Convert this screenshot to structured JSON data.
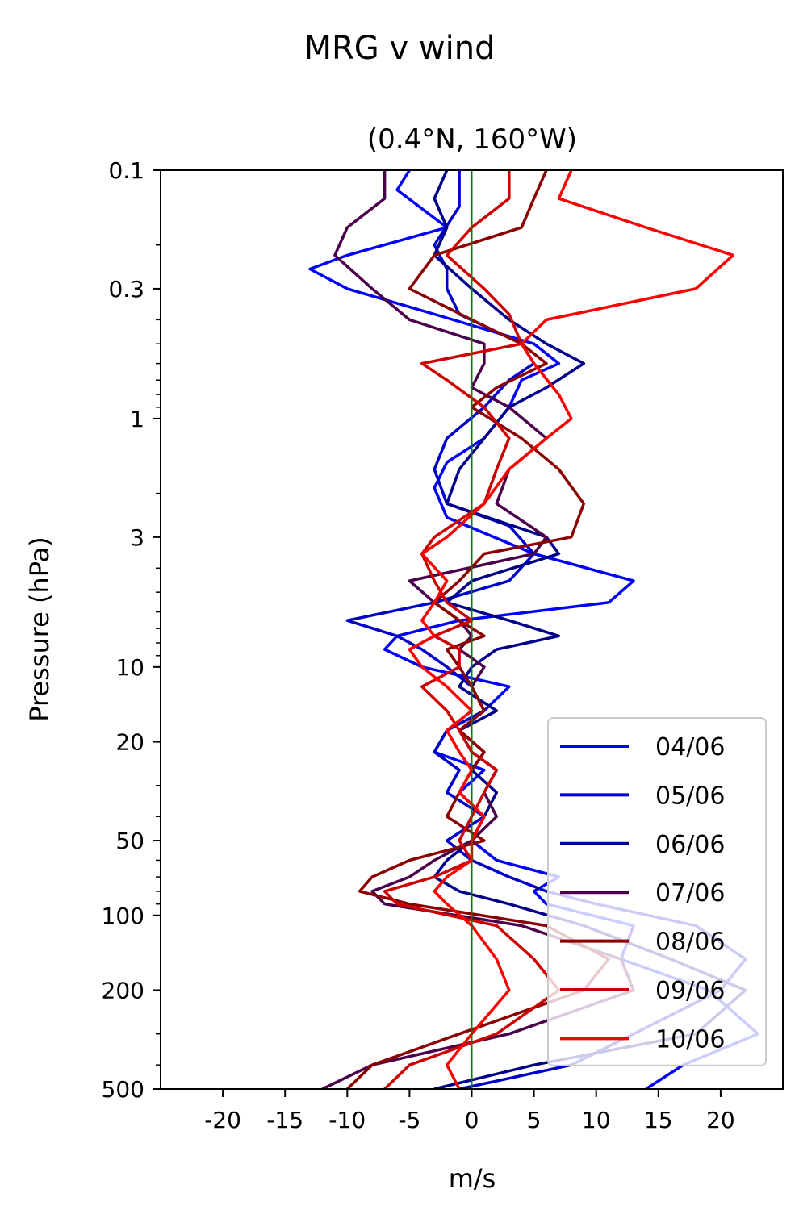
{
  "chart_data": {
    "type": "line",
    "title": "MRG v wind",
    "subtitle": "(0.4°N, 160°W)",
    "xlabel": "m/s",
    "ylabel": "Pressure (hPa)",
    "xlim": [
      -25,
      25
    ],
    "ylim": [
      500,
      0.1
    ],
    "yscale": "log",
    "x_ticks": [
      -20,
      -15,
      -10,
      -5,
      0,
      5,
      10,
      15,
      20
    ],
    "x_tick_labels": [
      "-20",
      "-15",
      "-10",
      "-5",
      "0",
      "5",
      "10",
      "15",
      "20"
    ],
    "y_ticks": [
      0.1,
      0.3,
      1,
      3,
      10,
      20,
      50,
      100,
      200,
      500
    ],
    "y_tick_labels": [
      "0.1",
      "0.3",
      "1",
      "3",
      "10",
      "20",
      "50",
      "100",
      "200",
      "500"
    ],
    "reference_line": {
      "x": 0,
      "color": "#008000"
    },
    "legend_position": "lower right",
    "grid": false,
    "series": [
      {
        "name": "04/06",
        "color": "#0000ff",
        "p": [
          0.1,
          0.12,
          0.17,
          0.22,
          0.25,
          0.3,
          0.38,
          0.5,
          0.6,
          0.7,
          0.9,
          1.2,
          1.5,
          1.9,
          2.5,
          3.5,
          4.5,
          5.5,
          6.5,
          7.5,
          8.5,
          10,
          12,
          15,
          18,
          22,
          26,
          32,
          40,
          50,
          60,
          70,
          80,
          90,
          110,
          150,
          200,
          300,
          400,
          500
        ],
        "x": [
          -5,
          -6,
          -2,
          -10,
          -13,
          -10,
          -3,
          5,
          7,
          4,
          3,
          1,
          -2,
          -3,
          -2,
          5,
          13,
          11,
          -1,
          -6,
          -7,
          -4,
          3,
          1,
          -2,
          -3,
          1,
          -1,
          1,
          0,
          2,
          7,
          5,
          6,
          13,
          12,
          19,
          23,
          17,
          14
        ]
      },
      {
        "name": "05/06",
        "color": "#0000cc",
        "p": [
          0.1,
          0.14,
          0.2,
          0.25,
          0.3,
          0.38,
          0.5,
          0.6,
          0.7,
          0.9,
          1.2,
          1.6,
          2.2,
          2.7,
          3.5,
          4.5,
          5.5,
          6.5,
          7.5,
          8.5,
          10,
          12,
          15,
          18,
          22,
          26,
          32,
          40,
          50,
          60,
          70,
          80,
          90,
          110,
          150,
          200,
          300,
          400,
          500
        ],
        "x": [
          -1,
          -1,
          -3,
          -2,
          -2,
          -1,
          4,
          5,
          3,
          1,
          -2,
          -3,
          -2,
          3,
          5,
          3,
          -3,
          -10,
          -6,
          -4,
          -2,
          0,
          1,
          -2,
          -3,
          -1,
          -2,
          1,
          -2,
          0,
          3,
          6,
          10,
          18,
          22,
          20,
          13,
          8,
          -1
        ]
      },
      {
        "name": "06/06",
        "color": "#00008b",
        "p": [
          0.1,
          0.13,
          0.17,
          0.22,
          0.3,
          0.4,
          0.5,
          0.6,
          0.75,
          0.9,
          1.2,
          1.6,
          2.2,
          3,
          3.5,
          4.5,
          5.5,
          6.5,
          7.5,
          8.5,
          10,
          12,
          15,
          18,
          22,
          26,
          32,
          40,
          50,
          60,
          70,
          80,
          90,
          110,
          150,
          200,
          300,
          400,
          500
        ],
        "x": [
          -2,
          -3,
          -2,
          -3,
          0,
          3,
          6,
          9,
          6,
          3,
          1,
          -1,
          -2,
          6,
          7,
          0,
          -2,
          3,
          7,
          2,
          0,
          -1,
          2,
          -1,
          1,
          0,
          2,
          1,
          0,
          -2,
          -3,
          -1,
          3,
          9,
          16,
          22,
          18,
          5,
          -3
        ]
      },
      {
        "name": "07/06",
        "color": "#4b004b",
        "p": [
          0.1,
          0.13,
          0.17,
          0.22,
          0.3,
          0.4,
          0.5,
          0.6,
          0.75,
          0.9,
          1.2,
          1.6,
          2.2,
          3,
          3.5,
          4.5,
          5.5,
          6.5,
          7.5,
          8.5,
          10,
          12,
          15,
          18,
          22,
          26,
          32,
          40,
          50,
          60,
          70,
          80,
          90,
          110,
          150,
          200,
          300,
          400,
          500
        ],
        "x": [
          -7,
          -7,
          -10,
          -11,
          -8,
          -5,
          1,
          1,
          0,
          3,
          6,
          3,
          2,
          6,
          5,
          -5,
          -3,
          -1,
          0,
          -1,
          1,
          0,
          1,
          -1,
          0,
          2,
          1,
          2,
          0,
          -3,
          -5,
          -8,
          -7,
          4,
          12,
          13,
          3,
          -8,
          -12
        ]
      },
      {
        "name": "08/06",
        "color": "#8b0000",
        "p": [
          0.1,
          0.13,
          0.17,
          0.22,
          0.3,
          0.4,
          0.5,
          0.6,
          0.75,
          0.9,
          1.2,
          1.6,
          2.2,
          3,
          3.5,
          4.5,
          5.5,
          6.5,
          7.5,
          8.5,
          10,
          12,
          15,
          18,
          22,
          26,
          32,
          40,
          50,
          60,
          70,
          80,
          90,
          110,
          150,
          200,
          300,
          400,
          500
        ],
        "x": [
          6,
          5,
          4,
          -3,
          -5,
          0,
          4,
          6,
          2,
          0,
          4,
          7,
          9,
          8,
          1,
          -1,
          -3,
          -1,
          1,
          -2,
          -1,
          0,
          1,
          -1,
          1,
          0,
          -1,
          -2,
          1,
          -5,
          -8,
          -9,
          -5,
          6,
          11,
          9,
          -1,
          -8,
          -10
        ]
      },
      {
        "name": "09/06",
        "color": "#cc0000",
        "p": [
          0.1,
          0.13,
          0.17,
          0.22,
          0.3,
          0.38,
          0.5,
          0.6,
          0.7,
          0.9,
          1.2,
          1.6,
          2.2,
          3,
          3.5,
          4.5,
          5.5,
          6.5,
          7.5,
          8.5,
          10,
          12,
          15,
          18,
          22,
          26,
          32,
          40,
          50,
          60,
          70,
          80,
          90,
          110,
          150,
          200,
          300,
          400,
          500
        ],
        "x": [
          3,
          3,
          0,
          -2,
          1,
          3,
          4,
          -4,
          -2,
          1,
          3,
          2,
          1,
          -3,
          -4,
          -3,
          -2,
          0,
          -3,
          -1,
          -1,
          -4,
          -2,
          -1,
          0,
          2,
          1,
          0,
          -1,
          0,
          -3,
          -7,
          -6,
          2,
          5,
          7,
          2,
          -5,
          -7
        ]
      },
      {
        "name": "10/06",
        "color": "#ff0000",
        "p": [
          0.1,
          0.13,
          0.17,
          0.22,
          0.3,
          0.4,
          0.5,
          0.6,
          0.8,
          1.0,
          1.2,
          1.6,
          2.2,
          3,
          3.5,
          4.5,
          5.5,
          6.5,
          7.5,
          8.5,
          10,
          12,
          15,
          18,
          22,
          26,
          32,
          40,
          50,
          60,
          70,
          80,
          90,
          110,
          150,
          200,
          300,
          400,
          500
        ],
        "x": [
          8,
          7,
          14,
          21,
          18,
          6,
          4,
          5,
          7,
          8,
          6,
          3,
          1,
          -2,
          -4,
          -2,
          -3,
          -4,
          -3,
          -5,
          -4,
          -2,
          0,
          -2,
          -1,
          0,
          -1,
          1,
          0,
          0,
          -2,
          -3,
          -2,
          0,
          2,
          3,
          0,
          -2,
          -1
        ]
      }
    ]
  }
}
